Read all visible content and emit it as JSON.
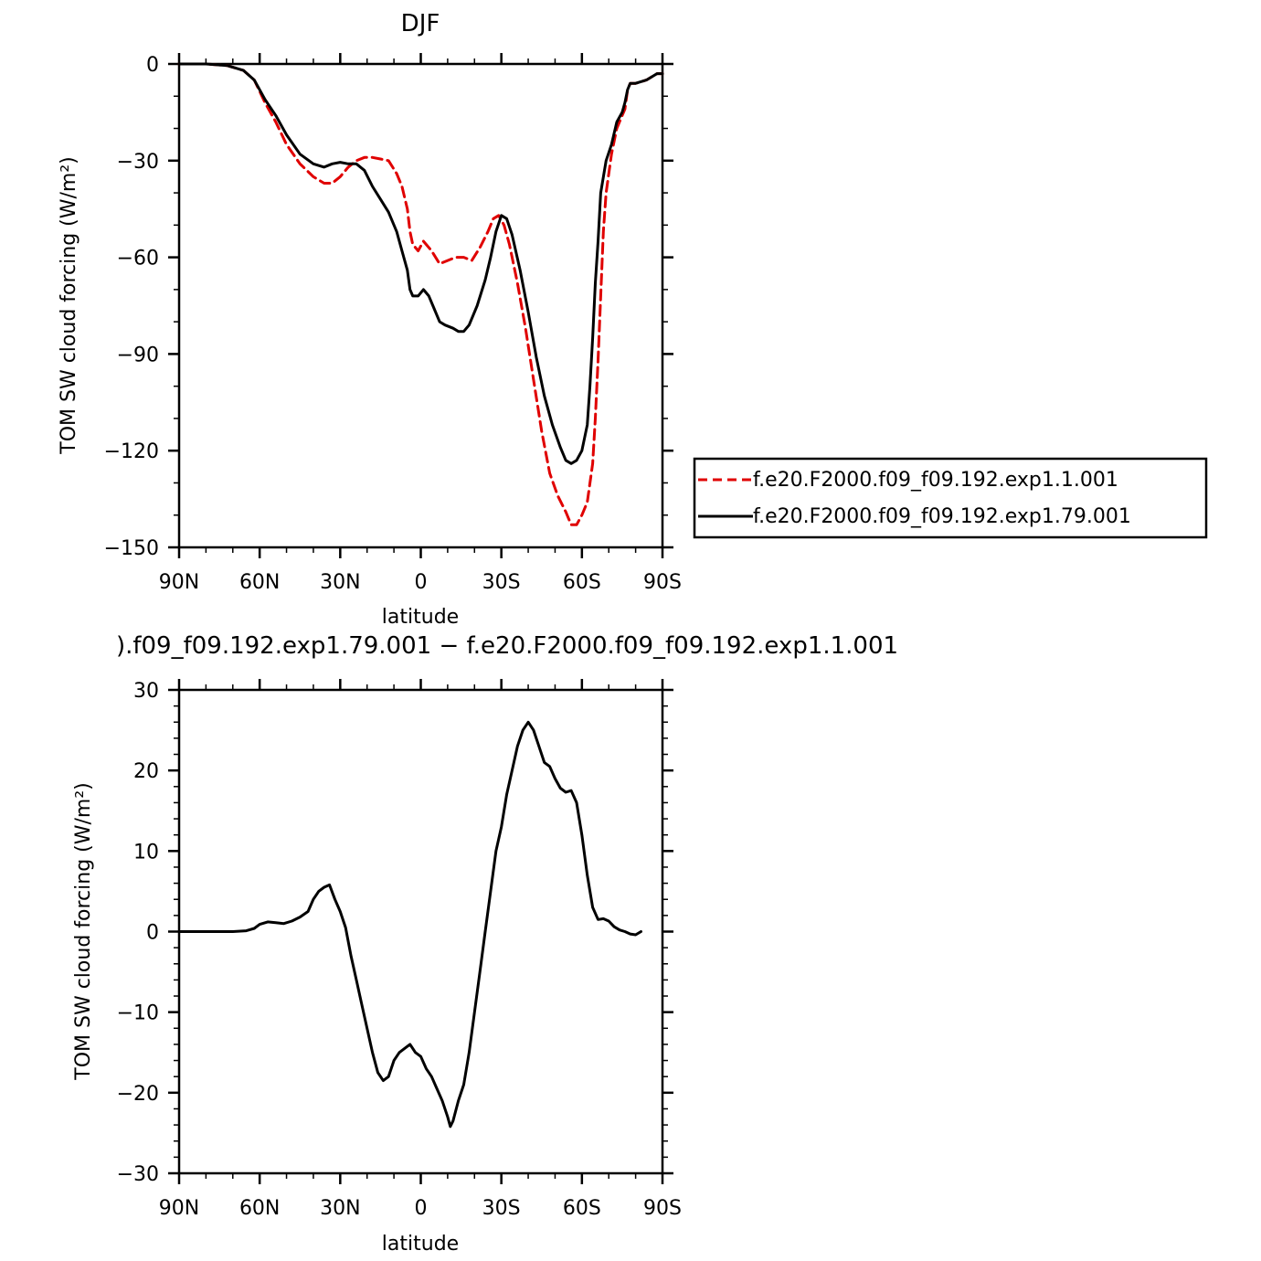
{
  "chart_data": [
    {
      "type": "line",
      "title": "DJF",
      "xlabel": "latitude",
      "ylabel": "TOM SW cloud forcing (W/m²)",
      "xlim": [
        90,
        -90
      ],
      "ylim": [
        -150,
        0
      ],
      "x_tick_values": [
        90,
        60,
        30,
        0,
        -30,
        -60,
        -90
      ],
      "x_tick_labels": [
        "90N",
        "60N",
        "30N",
        "0",
        "30S",
        "60S",
        "90S"
      ],
      "y_tick_values": [
        0,
        -30,
        -60,
        -90,
        -120,
        -150
      ],
      "y_tick_labels": [
        "0",
        "−30",
        "−60",
        "−90",
        "−120",
        "−150"
      ],
      "legend_position": "right",
      "series": [
        {
          "name": "f.e20.F2000.f09_f09.192.exp1.1.001",
          "color": "#e00000",
          "dash": "dashed",
          "points": [
            [
              90,
              0
            ],
            [
              80,
              0
            ],
            [
              72,
              -0.5
            ],
            [
              66,
              -2
            ],
            [
              62,
              -5
            ],
            [
              58,
              -12
            ],
            [
              54,
              -18
            ],
            [
              50,
              -25
            ],
            [
              45,
              -31
            ],
            [
              40,
              -35
            ],
            [
              36,
              -37
            ],
            [
              33,
              -37
            ],
            [
              30,
              -35
            ],
            [
              27,
              -32
            ],
            [
              24,
              -30
            ],
            [
              21,
              -29
            ],
            [
              18,
              -29
            ],
            [
              15,
              -29.5
            ],
            [
              12,
              -30
            ],
            [
              9,
              -34
            ],
            [
              7,
              -38
            ],
            [
              5,
              -45
            ],
            [
              4,
              -52
            ],
            [
              3,
              -56
            ],
            [
              1,
              -58
            ],
            [
              -1,
              -55
            ],
            [
              -2,
              -56
            ],
            [
              -4,
              -58
            ],
            [
              -7,
              -62
            ],
            [
              -10,
              -61
            ],
            [
              -13,
              -60
            ],
            [
              -16,
              -60
            ],
            [
              -19,
              -61
            ],
            [
              -22,
              -57
            ],
            [
              -25,
              -52
            ],
            [
              -27,
              -48
            ],
            [
              -29,
              -47
            ],
            [
              -31,
              -50
            ],
            [
              -33,
              -56
            ],
            [
              -36,
              -68
            ],
            [
              -39,
              -82
            ],
            [
              -42,
              -98
            ],
            [
              -45,
              -114
            ],
            [
              -48,
              -127
            ],
            [
              -51,
              -134
            ],
            [
              -54,
              -139
            ],
            [
              -56,
              -143
            ],
            [
              -58,
              -143
            ],
            [
              -60,
              -140
            ],
            [
              -62,
              -136
            ],
            [
              -64,
              -124
            ],
            [
              -65,
              -110
            ],
            [
              -66,
              -92
            ],
            [
              -67,
              -72
            ],
            [
              -68,
              -52
            ],
            [
              -69,
              -40
            ],
            [
              -71,
              -28
            ],
            [
              -73,
              -20
            ],
            [
              -75,
              -16
            ],
            [
              -76,
              -14
            ],
            [
              -77,
              -8
            ],
            [
              -78,
              -6
            ],
            [
              -80,
              -6
            ],
            [
              -84,
              -5
            ],
            [
              -86,
              -4
            ],
            [
              -88,
              -3
            ],
            [
              -90,
              -3
            ]
          ]
        },
        {
          "name": "f.e20.F2000.f09_f09.192.exp1.79.001",
          "color": "#000000",
          "dash": "solid",
          "points": [
            [
              90,
              0
            ],
            [
              80,
              0
            ],
            [
              72,
              -0.5
            ],
            [
              66,
              -2
            ],
            [
              62,
              -5
            ],
            [
              58,
              -11
            ],
            [
              54,
              -16
            ],
            [
              50,
              -22
            ],
            [
              45,
              -28
            ],
            [
              40,
              -31
            ],
            [
              36,
              -32
            ],
            [
              33,
              -31
            ],
            [
              30,
              -30.5
            ],
            [
              27,
              -31
            ],
            [
              24,
              -31
            ],
            [
              21,
              -33
            ],
            [
              18,
              -38
            ],
            [
              15,
              -42
            ],
            [
              12,
              -46
            ],
            [
              9,
              -52
            ],
            [
              7,
              -58
            ],
            [
              5,
              -64
            ],
            [
              4,
              -70
            ],
            [
              3,
              -72
            ],
            [
              1,
              -72
            ],
            [
              -1,
              -70
            ],
            [
              -3,
              -72
            ],
            [
              -5,
              -76
            ],
            [
              -7,
              -80
            ],
            [
              -9,
              -81
            ],
            [
              -12,
              -82
            ],
            [
              -14,
              -83
            ],
            [
              -16,
              -83
            ],
            [
              -18,
              -81
            ],
            [
              -21,
              -75
            ],
            [
              -24,
              -67
            ],
            [
              -26,
              -60
            ],
            [
              -28,
              -52
            ],
            [
              -30,
              -47
            ],
            [
              -32,
              -48
            ],
            [
              -34,
              -53
            ],
            [
              -37,
              -64
            ],
            [
              -40,
              -77
            ],
            [
              -43,
              -91
            ],
            [
              -46,
              -103
            ],
            [
              -49,
              -112
            ],
            [
              -52,
              -119
            ],
            [
              -54,
              -123
            ],
            [
              -56,
              -124
            ],
            [
              -58,
              -123
            ],
            [
              -60,
              -120
            ],
            [
              -62,
              -112
            ],
            [
              -63,
              -100
            ],
            [
              -64,
              -85
            ],
            [
              -65,
              -68
            ],
            [
              -66,
              -55
            ],
            [
              -67,
              -40
            ],
            [
              -69,
              -30
            ],
            [
              -71,
              -25
            ],
            [
              -73,
              -18
            ],
            [
              -75,
              -15
            ],
            [
              -76,
              -12
            ],
            [
              -77,
              -8
            ],
            [
              -78,
              -6
            ],
            [
              -80,
              -6
            ],
            [
              -84,
              -5
            ],
            [
              -86,
              -4
            ],
            [
              -88,
              -3
            ],
            [
              -90,
              -3
            ]
          ]
        }
      ]
    },
    {
      "type": "line",
      "title": ").f09_f09.192.exp1.79.001 − f.e20.F2000.f09_f09.192.exp1.1.001",
      "xlabel": "latitude",
      "ylabel": "TOM SW cloud forcing (W/m²)",
      "xlim": [
        90,
        -90
      ],
      "ylim": [
        -30,
        30
      ],
      "x_tick_values": [
        90,
        60,
        30,
        0,
        -30,
        -60,
        -90
      ],
      "x_tick_labels": [
        "90N",
        "60N",
        "30N",
        "0",
        "30S",
        "60S",
        "90S"
      ],
      "y_tick_values": [
        30,
        20,
        10,
        0,
        -10,
        -20,
        -30
      ],
      "y_tick_labels": [
        "30",
        "20",
        "10",
        "0",
        "−10",
        "−20",
        "−30"
      ],
      "series": [
        {
          "color": "#000000",
          "dash": "solid",
          "points": [
            [
              90,
              0
            ],
            [
              80,
              0
            ],
            [
              70,
              0
            ],
            [
              65,
              0.1
            ],
            [
              62,
              0.4
            ],
            [
              60,
              0.9
            ],
            [
              57,
              1.2
            ],
            [
              54,
              1.1
            ],
            [
              51,
              1.0
            ],
            [
              48,
              1.3
            ],
            [
              45,
              1.8
            ],
            [
              42,
              2.5
            ],
            [
              40,
              4
            ],
            [
              38,
              5
            ],
            [
              36,
              5.5
            ],
            [
              34,
              5.8
            ],
            [
              32,
              4
            ],
            [
              30,
              2.5
            ],
            [
              28,
              0.5
            ],
            [
              26,
              -3
            ],
            [
              24,
              -6
            ],
            [
              22,
              -9
            ],
            [
              20,
              -12
            ],
            [
              18,
              -15
            ],
            [
              16,
              -17.5
            ],
            [
              14,
              -18.5
            ],
            [
              12,
              -18
            ],
            [
              10,
              -16
            ],
            [
              8,
              -15
            ],
            [
              6,
              -14.5
            ],
            [
              4,
              -14
            ],
            [
              2,
              -15
            ],
            [
              0,
              -15.5
            ],
            [
              -2,
              -17
            ],
            [
              -4,
              -18
            ],
            [
              -6,
              -19.5
            ],
            [
              -8,
              -21
            ],
            [
              -10,
              -23
            ],
            [
              -11,
              -24.2
            ],
            [
              -12,
              -23.5
            ],
            [
              -14,
              -21
            ],
            [
              -16,
              -19
            ],
            [
              -18,
              -15
            ],
            [
              -20,
              -10
            ],
            [
              -22,
              -5
            ],
            [
              -24,
              0
            ],
            [
              -26,
              5
            ],
            [
              -28,
              10
            ],
            [
              -30,
              13
            ],
            [
              -32,
              17
            ],
            [
              -34,
              20
            ],
            [
              -36,
              23
            ],
            [
              -38,
              25
            ],
            [
              -40,
              26
            ],
            [
              -42,
              25
            ],
            [
              -44,
              23
            ],
            [
              -46,
              21
            ],
            [
              -48,
              20.5
            ],
            [
              -50,
              19
            ],
            [
              -52,
              17.8
            ],
            [
              -54,
              17.3
            ],
            [
              -56,
              17.5
            ],
            [
              -58,
              16
            ],
            [
              -60,
              12
            ],
            [
              -62,
              7
            ],
            [
              -64,
              3
            ],
            [
              -66,
              1.5
            ],
            [
              -68,
              1.6
            ],
            [
              -70,
              1.3
            ],
            [
              -72,
              0.6
            ],
            [
              -74,
              0.2
            ],
            [
              -76,
              0
            ],
            [
              -78,
              -0.3
            ],
            [
              -80,
              -0.4
            ],
            [
              -82,
              0
            ]
          ]
        }
      ]
    }
  ],
  "legend": {
    "entries": [
      {
        "label": "f.e20.F2000.f09_f09.192.exp1.1.001",
        "color": "#e00000",
        "dash": "dashed"
      },
      {
        "label": "f.e20.F2000.f09_f09.192.exp1.79.001",
        "color": "#000000",
        "dash": "solid"
      }
    ]
  }
}
